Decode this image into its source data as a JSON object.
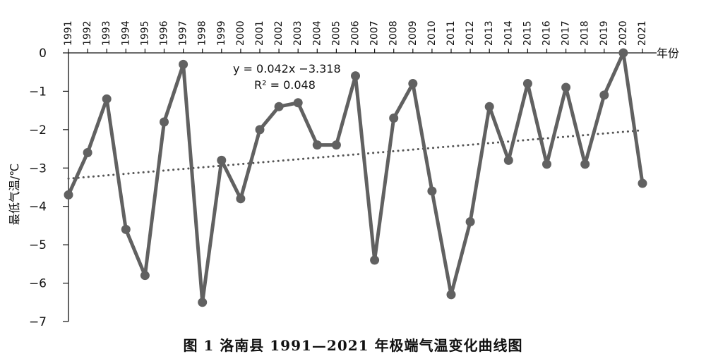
{
  "caption": "图 1   洛南县 1991—2021 年极端气温变化曲线图",
  "chart_data": {
    "type": "line",
    "xlabel": "年份",
    "ylabel": "最低气温/℃",
    "ylim": [
      -7,
      0
    ],
    "yticks": [
      0,
      -1,
      -2,
      -3,
      -4,
      -5,
      -6,
      -7
    ],
    "ytick_labels": [
      "0",
      "−1",
      "−2",
      "−3",
      "−4",
      "−5",
      "−6",
      "−7"
    ],
    "x": [
      "1991",
      "1992",
      "1993",
      "1994",
      "1995",
      "1996",
      "1997",
      "1998",
      "1999",
      "2000",
      "2001",
      "2002",
      "2003",
      "2004",
      "2005",
      "2006",
      "2007",
      "2008",
      "2009",
      "2010",
      "2011",
      "2012",
      "2013",
      "2014",
      "2015",
      "2016",
      "2017",
      "2018",
      "2019",
      "2020",
      "2021"
    ],
    "series": [
      {
        "values": [
          -3.7,
          -2.6,
          -1.2,
          -4.6,
          -5.8,
          -1.8,
          -0.3,
          -6.5,
          -2.8,
          -3.8,
          -2.0,
          -1.4,
          -1.3,
          -2.4,
          -2.4,
          -0.6,
          -5.4,
          -1.7,
          -0.8,
          -3.6,
          -6.3,
          -4.4,
          -1.4,
          -2.8,
          -0.8,
          -2.9,
          -0.9,
          -2.9,
          -1.1,
          0.0,
          -3.4
        ],
        "color": "#616161"
      }
    ],
    "trendline": {
      "slope": 0.042,
      "intercept": -3.318,
      "equation": "y = 0.042x −3.318",
      "r_squared": "R² = 0.048",
      "style": "dotted",
      "color": "#555555"
    },
    "grid": false,
    "x_axis_position": "top"
  }
}
